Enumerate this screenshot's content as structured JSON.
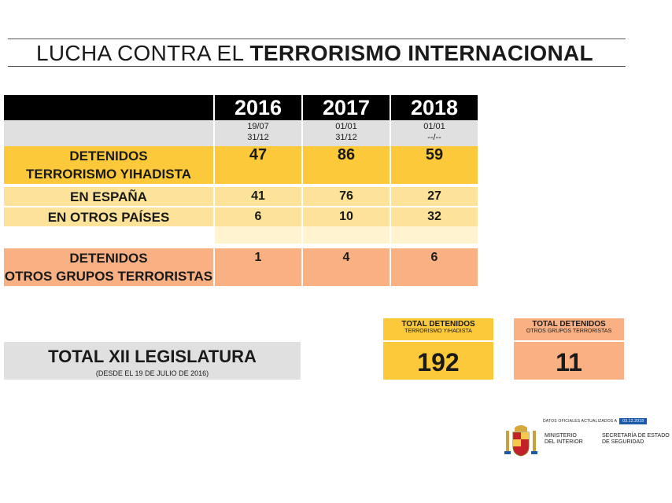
{
  "title": {
    "light": "LUCHA CONTRA EL",
    "bold": "TERRORISMO INTERNACIONAL"
  },
  "years": [
    {
      "year": "2016",
      "from": "19/07",
      "to": "31/12"
    },
    {
      "year": "2017",
      "from": "01/01",
      "to": "31/12"
    },
    {
      "year": "2018",
      "from": "01/01",
      "to": "--/--"
    }
  ],
  "rows": {
    "yihad": {
      "label1": "DETENIDOS",
      "label2": "TERRORISMO YIHADISTA",
      "values": [
        "47",
        "86",
        "59"
      ]
    },
    "espana": {
      "label": "EN ESPAÑA",
      "values": [
        "41",
        "76",
        "27"
      ]
    },
    "otros_paises": {
      "label": "EN OTROS PAÍSES",
      "values": [
        "6",
        "10",
        "32"
      ]
    },
    "otros_grupos": {
      "label1": "DETENIDOS",
      "label2": "OTROS GRUPOS TERRORISTAS",
      "values": [
        "1",
        "4",
        "6"
      ]
    }
  },
  "legislatura": {
    "title": "TOTAL XII LEGISLATURA",
    "subtitle": "(DESDE EL 19 DE JULIO DE 2016)"
  },
  "totals": {
    "yihad": {
      "label": "TOTAL DETENIDOS",
      "sublabel": "TERRORISMO YIHADISTA",
      "value": "192"
    },
    "otros": {
      "label": "TOTAL DETENIDOS",
      "sublabel": "OTROS GRUPOS TERRORISTAS",
      "value": "11"
    }
  },
  "footer": {
    "updated_label": "DATOS OFICIALES ACTUALIZADOS A",
    "updated_date": "03.12.2018",
    "ministry_line1": "MINISTERIO",
    "ministry_line2": "DEL INTERIOR",
    "secretaria_line1": "SECRETARÍA DE ESTADO",
    "secretaria_line2": "DE SEGURIDAD"
  }
}
